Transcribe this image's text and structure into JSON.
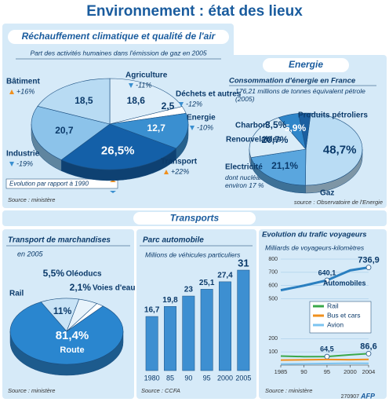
{
  "header": {
    "title": "Environnement : état des lieux",
    "section": "Transports",
    "credit": "270907",
    "agency": "AFP"
  },
  "chart_data": [
    {
      "type": "pie",
      "title": "Réchauffement climatique et qualité de l'air",
      "subtitle": "Part des activités humaines dans l'émission de gaz en 2005",
      "categories": [
        "Agriculture",
        "Déchets et autres",
        "Energie",
        "Transport",
        "Industrie",
        "Bâtiment"
      ],
      "values": [
        18.6,
        2.5,
        12.7,
        26.5,
        20.7,
        18.5
      ],
      "value_labels": [
        "18,6",
        "2,5",
        "12,7",
        "26,5%",
        "20,7",
        "18,5"
      ],
      "changes": [
        -11,
        -12,
        -10,
        22,
        -19,
        16
      ],
      "change_labels": [
        "-11%",
        "-12%",
        "-10%",
        "+22%",
        "-19%",
        "+16%"
      ],
      "colors": [
        "#dcedf9",
        "#ffffff",
        "#3a8fd0",
        "#1460a8",
        "#8cc3ea",
        "#b8dbf3"
      ],
      "legend_note": "Evolution par rapport à 1990",
      "source": "Source : ministère"
    },
    {
      "type": "pie",
      "section": "Energie",
      "title": "Consommation d'énergie en France",
      "subtitle": "176,21 millions de tonnes équivalent pétrole (2005)",
      "categories": [
        "Produits pétroliers",
        "Gaz",
        "Electricité",
        "Renouvelables",
        "Charbon"
      ],
      "values": [
        48.7,
        21.1,
        20.7,
        5.9,
        3.5
      ],
      "value_labels": [
        "48,7%",
        "21,1%",
        "20,7%",
        "5,9%",
        "3,5%"
      ],
      "annotation": "dont nucléaire : environ 17 %",
      "colors": [
        "#b9dcf4",
        "#5aa6de",
        "#d9ecf8",
        "#2f86c9",
        "#1b5fa0"
      ],
      "source": "source : Observatoire de l'Energie"
    },
    {
      "type": "pie",
      "title": "Transport de marchandises",
      "subtitle": "en 2005",
      "categories": [
        "Route",
        "Rail",
        "Oléoducs",
        "Voies d'eau"
      ],
      "values": [
        81.4,
        11,
        5.5,
        2.1
      ],
      "value_labels": [
        "81,4%",
        "11%",
        "5,5%",
        "2,1%"
      ],
      "colors": [
        "#2a86cf",
        "#c8e3f6",
        "#e8f3fb",
        "#ffffff"
      ],
      "source": "Source : ministère"
    },
    {
      "type": "bar",
      "title": "Parc automobile",
      "subtitle": "Millions de véhicules particuliers",
      "categories": [
        "1980",
        "85",
        "90",
        "95",
        "2000",
        "2005"
      ],
      "values": [
        16.7,
        19.8,
        23,
        25.1,
        27.4,
        31
      ],
      "value_labels": [
        "16,7",
        "19,8",
        "23",
        "25,1",
        "27,4",
        "31"
      ],
      "color": "#3d8fd1",
      "source": "Source : CCFA"
    },
    {
      "type": "line",
      "title": "Evolution du trafic voyageurs",
      "subtitle": "Milliards de voyageurs-kilomètres",
      "x": [
        1985,
        1990,
        1995,
        2000,
        2004
      ],
      "xlim": [
        1985,
        2004
      ],
      "xticks": [
        1985,
        {
          "value": 1990,
          "label": "90"
        },
        {
          "value": 1995,
          "label": "95"
        },
        2000,
        2004
      ],
      "ylim": [
        0,
        800
      ],
      "yticks": [
        100,
        200,
        500,
        600,
        700,
        800
      ],
      "grid": true,
      "series": [
        {
          "name": "Automobiles",
          "color": "#2a7fc0",
          "values": [
            565,
            600,
            640.1,
            715,
            736.9
          ],
          "value_labels": [
            null,
            null,
            "640,1",
            null,
            "736,9"
          ]
        },
        {
          "name": "Rail",
          "color": "#3aa84a",
          "values": [
            68,
            64,
            64.5,
            78,
            86.6
          ],
          "value_labels": [
            null,
            null,
            "64,5",
            null,
            "86,6"
          ]
        },
        {
          "name": "Bus et cars",
          "color": "#f0901e",
          "values": [
            38,
            40,
            42,
            41,
            43
          ]
        },
        {
          "name": "Avion",
          "color": "#7cc4f0",
          "values": [
            8,
            10,
            12,
            14,
            13
          ]
        }
      ],
      "source": "Source : ministère"
    }
  ]
}
